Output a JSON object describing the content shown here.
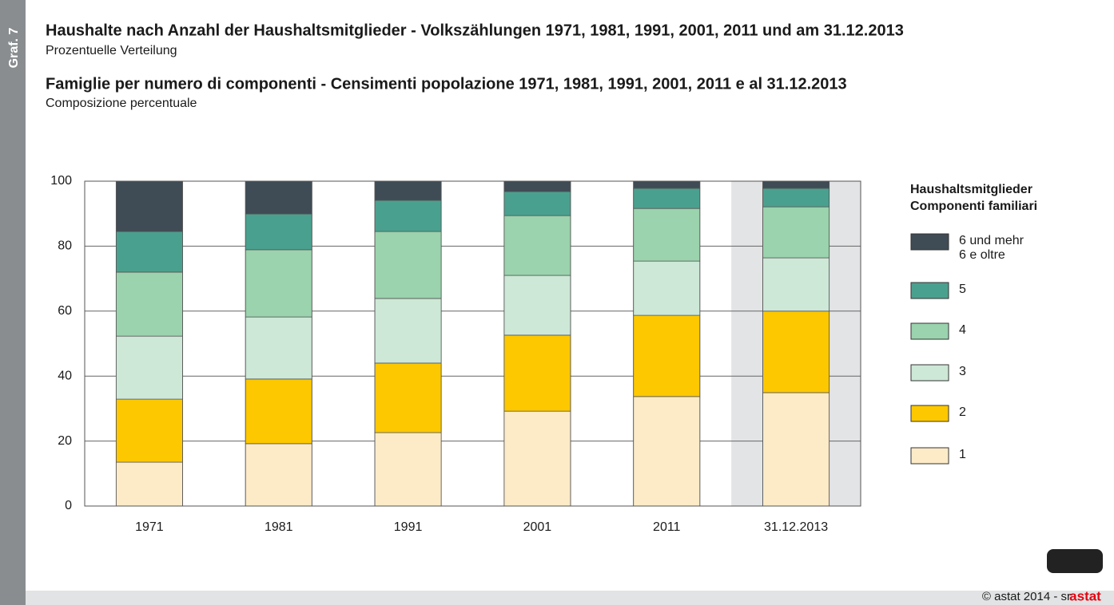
{
  "chart_data": {
    "type": "stacked_bar",
    "side_label": "Graf. 7",
    "title": "Haushalte nach Anzahl der Haushaltsmitglieder - Volkszählungen 1971, 1981, 1991, 2001, 2011 und am 31.12.2013",
    "subtitle": "Prozentuelle Verteilung",
    "title2": "Famiglie per numero di componenti - Censimenti popolazione 1971, 1981, 1991, 2001, 2011 e al 31.12.2013",
    "subtitle2": "Composizione percentuale",
    "legend_title": [
      "Haushaltsmitglieder",
      "Componenti familiari"
    ],
    "categories": [
      "1971",
      "1981",
      "1991",
      "2001",
      "2011",
      "31.12.2013"
    ],
    "series": [
      {
        "name": "1",
        "color": "#fdebc8",
        "values": [
          13.5,
          19.2,
          22.6,
          29.2,
          33.7,
          34.9
        ]
      },
      {
        "name": "2",
        "color": "#fdc800",
        "values": [
          19.4,
          19.9,
          21.4,
          23.4,
          25.0,
          25.1
        ]
      },
      {
        "name": "3",
        "color": "#cde8d6",
        "values": [
          19.4,
          19.1,
          19.9,
          18.4,
          16.7,
          16.4
        ]
      },
      {
        "name": "4",
        "color": "#9ad3ad",
        "values": [
          19.7,
          20.7,
          20.6,
          18.4,
          16.2,
          15.7
        ]
      },
      {
        "name": "5",
        "color": "#4aa08e",
        "values": [
          12.5,
          11.0,
          9.6,
          7.4,
          6.2,
          5.7
        ]
      },
      {
        "name": "6 und mehr\n6 e oltre",
        "color": "#3f4b55",
        "values": [
          15.5,
          10.1,
          5.9,
          3.2,
          2.2,
          2.2
        ]
      }
    ],
    "ylim": [
      0,
      100
    ],
    "yticks": [
      0,
      20,
      40,
      60,
      80,
      100
    ],
    "grid": true,
    "footer": "© astat 2014 - sr",
    "logo": "astat"
  }
}
